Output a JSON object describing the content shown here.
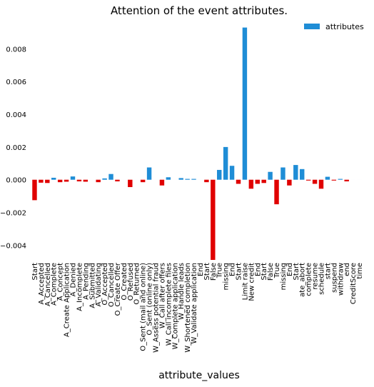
{
  "chart_data": {
    "type": "bar",
    "title": "Attention of the event attributes.",
    "xlabel": "attribute_values",
    "ylabel": "",
    "ylim": [
      -0.0049,
      0.0095
    ],
    "yticks": [
      -0.004,
      -0.002,
      0.0,
      0.002,
      0.004,
      0.006,
      0.008
    ],
    "ytick_labels": [
      "−0.004",
      "−0.002",
      "0.000",
      "0.002",
      "0.004",
      "0.006",
      "0.008"
    ],
    "grid": false,
    "legend": {
      "position": "top-right",
      "entries": [
        {
          "label": "attributes",
          "color": "#1f8dd6"
        }
      ]
    },
    "colors": {
      "positive": "#1f8dd6",
      "negative": "#e00000"
    },
    "categories": [
      "Start",
      "A_Accepted",
      "A_Cancelled",
      "A_Complete",
      "A_Concept",
      "A_Create Application",
      "A_Denied",
      "A_Incomplete",
      "A_Pending",
      "A_Submitted",
      "A_Validating",
      "O_Accepted",
      "O_Cancelled",
      "O_Create Offer",
      "O_Created",
      "O_Refused",
      "O_Returned",
      "O_Sent (mail and online)",
      "O_Sent (online only)",
      "W_Assess potential fraud",
      "W_Call after offers",
      "W_Call incomplete files",
      "W_Complete application",
      "W_Handle leads",
      "W_Shortened completion",
      "W_Validate application",
      "End",
      "Start",
      "False",
      "True",
      "missing",
      "End",
      "Start",
      "Limit raise",
      "New credit",
      "End",
      "Start",
      "False",
      "True",
      "missing",
      "End",
      "Start",
      "ate_abort",
      "complete",
      "resume",
      "schedule",
      "start",
      "suspend",
      "withdraw",
      "end",
      "CreditScore",
      "time"
    ],
    "values": [
      -0.00125,
      -0.00018,
      -0.0002,
      0.00012,
      -0.00015,
      -0.00012,
      0.0002,
      -0.0001,
      -0.00012,
      0.0,
      -0.00015,
      8e-05,
      0.00035,
      -0.0001,
      0.0,
      -0.00045,
      0.0,
      -0.00015,
      0.00075,
      0.0,
      -0.00035,
      0.00015,
      0.0,
      0.0001,
      5e-05,
      5e-05,
      0.0,
      -0.00015,
      -0.0049,
      0.0006,
      0.002,
      0.00085,
      -0.00025,
      0.0093,
      -0.00055,
      -0.00025,
      -0.0002,
      0.00048,
      -0.0015,
      0.00075,
      -0.00035,
      0.0009,
      0.00065,
      -5e-05,
      -0.00025,
      -0.00055,
      0.00018,
      -5e-05,
      5e-05,
      -0.0001,
      0.0,
      0.0
    ]
  }
}
